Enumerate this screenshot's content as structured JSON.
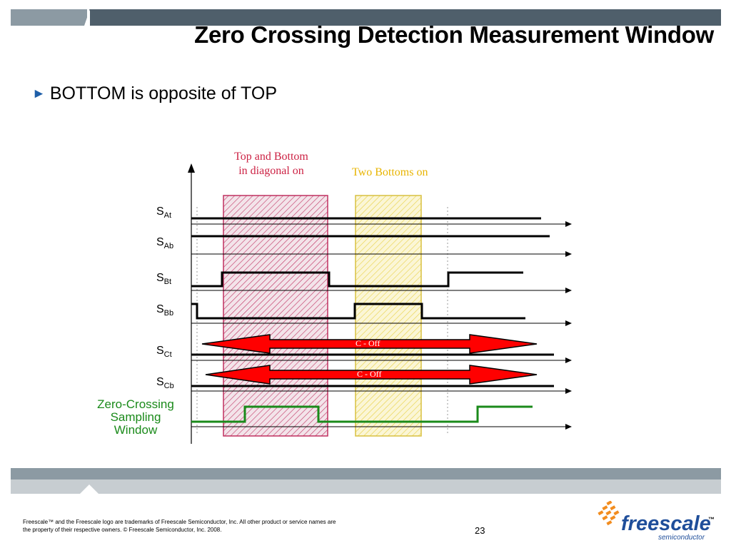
{
  "slide": {
    "title": "Zero Crossing Detection Measurement Window",
    "bullet": "BOTTOM is opposite of TOP",
    "bullet_marker": "►"
  },
  "diagram": {
    "annotations": {
      "top_and_bottom_line1": "Top and Bottom",
      "top_and_bottom_line2": "in diagonal on",
      "two_bottoms": "Two Bottoms on"
    },
    "signals": [
      {
        "base": "S",
        "sub": "At"
      },
      {
        "base": "S",
        "sub": "Ab"
      },
      {
        "base": "S",
        "sub": "Bt"
      },
      {
        "base": "S",
        "sub": "Bb"
      },
      {
        "base": "S",
        "sub": "Ct"
      },
      {
        "base": "S",
        "sub": "Cb"
      }
    ],
    "zero_crossing": {
      "line1": "Zero-Crossing",
      "line2": "Sampling",
      "line3": "Window"
    },
    "arrow_labels": {
      "ct": "C - Off",
      "cb": "C - Off"
    },
    "colors": {
      "pink_window": "#c03060",
      "yellow_window": "#e8d040",
      "arrow_fill": "#ff0000",
      "zc_green": "#1a8a1a",
      "signal": "#000000"
    }
  },
  "footer": {
    "legal_line1": "Freescale™ and the Freescale logo are trademarks of Freescale Semiconductor, Inc. All other product or service names are",
    "legal_line2": "the property of their respective owners. © Freescale Semiconductor, Inc. 2008.",
    "page_number": "23",
    "logo_name": "freescale",
    "logo_tm": "™",
    "logo_sub": "semiconductor"
  }
}
